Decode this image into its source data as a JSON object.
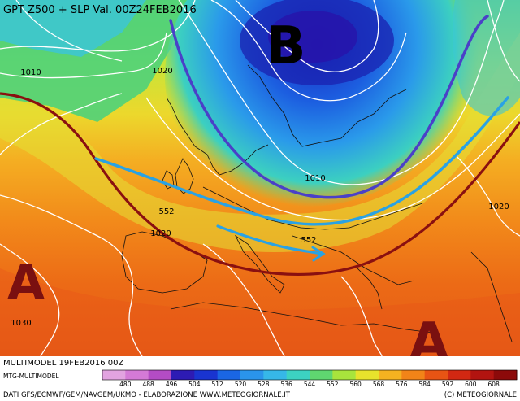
{
  "header": {
    "title": "GPT Z500 + SLP Val. 00Z24FEB2016"
  },
  "pressure_centers": [
    {
      "letter": "B",
      "color": "#000000"
    },
    {
      "letter": "A",
      "color": "#7a1010"
    },
    {
      "letter": "A",
      "color": "#7a1010"
    }
  ],
  "isobar_labels": [
    "1010",
    "1020",
    "1010",
    "1020",
    "1020",
    "1030"
  ],
  "geopotential_labels": [
    "552",
    "552"
  ],
  "colorbar": {
    "ticks": [
      "480",
      "488",
      "496",
      "504",
      "512",
      "520",
      "528",
      "536",
      "544",
      "552",
      "560",
      "568",
      "576",
      "584",
      "592",
      "600",
      "608"
    ],
    "colors": [
      "#e2a3e0",
      "#d47ad6",
      "#b44cc4",
      "#2d1bb4",
      "#1934d0",
      "#1a66e4",
      "#2a94ea",
      "#36b7e8",
      "#3cd2c2",
      "#5fd670",
      "#a8e43c",
      "#e8e22c",
      "#f5b220",
      "#f28418",
      "#e85414",
      "#d22812",
      "#b21410",
      "#8c0a0a"
    ]
  },
  "footer": {
    "model_run": "MULTIMODEL 19FEB2016 00Z",
    "model_name": "MTG-MULTIMODEL",
    "credits": "DATI GFS/ECMWF/GEM/NAVGEM/UKMO - ELABORAZIONE WWW.METEOGIORNALE.IT",
    "copyright": "(C) METEOGIORNALE"
  }
}
